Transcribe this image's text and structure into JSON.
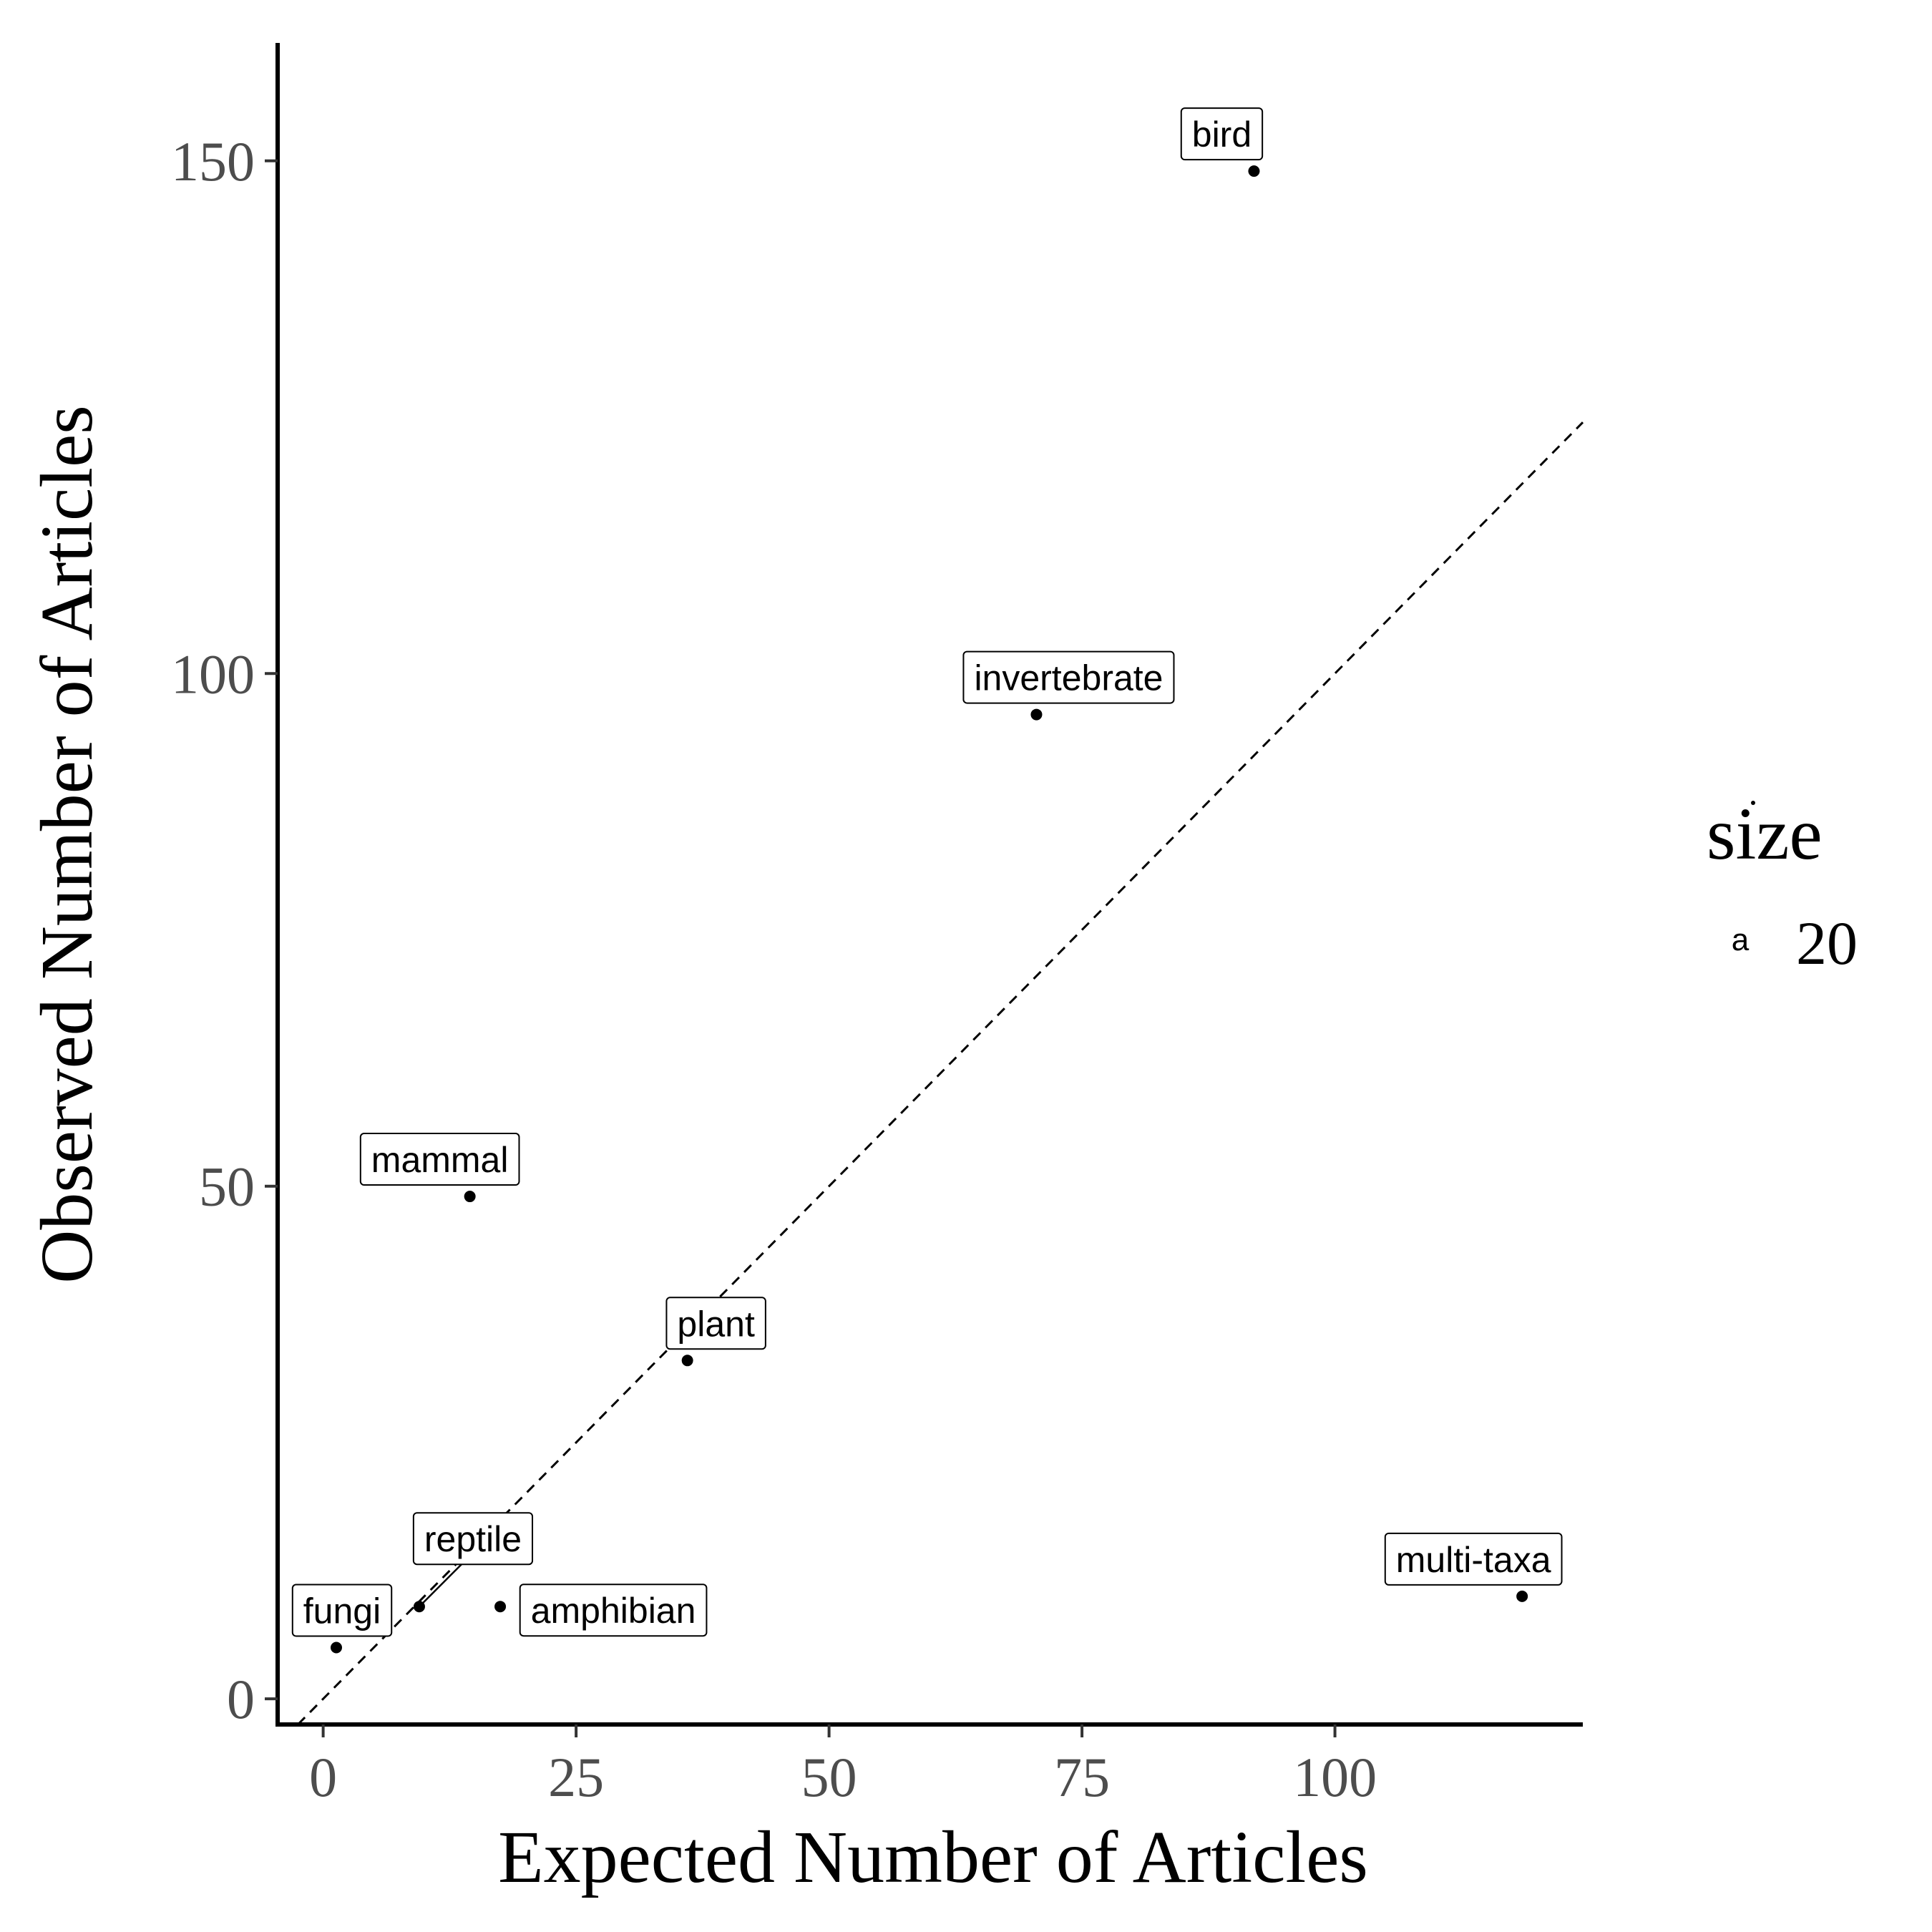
{
  "chart_data": {
    "type": "scatter",
    "xlabel": "Expected Number of Articles",
    "ylabel": "Observed Number of Articles",
    "xlim": [
      -4.5,
      124.5
    ],
    "ylim": [
      -2.5,
      161.5
    ],
    "x_ticks": [
      0,
      25,
      50,
      75,
      100
    ],
    "y_ticks": [
      0,
      50,
      100,
      150
    ],
    "x_tick_labels": [
      "0",
      "25",
      "50",
      "75",
      "100"
    ],
    "y_tick_labels": [
      "0",
      "50",
      "100",
      "150"
    ],
    "grid": false,
    "reference_line": {
      "type": "identity",
      "style": "dashed",
      "slope": 1,
      "intercept": 0
    },
    "points": [
      {
        "label": "bird",
        "x": 92,
        "y": 149
      },
      {
        "label": "invertebrate",
        "x": 70.5,
        "y": 96
      },
      {
        "label": "mammal",
        "x": 14.5,
        "y": 49
      },
      {
        "label": "plant",
        "x": 36,
        "y": 33
      },
      {
        "label": "reptile",
        "x": 9.5,
        "y": 9
      },
      {
        "label": "amphibian",
        "x": 17.5,
        "y": 9
      },
      {
        "label": "fungi",
        "x": 1.3,
        "y": 5
      },
      {
        "label": "multi-taxa",
        "x": 118.5,
        "y": 10
      }
    ],
    "legend": {
      "title": "size",
      "key_glyph": "a",
      "entries": [
        "20"
      ],
      "position": "right"
    }
  }
}
